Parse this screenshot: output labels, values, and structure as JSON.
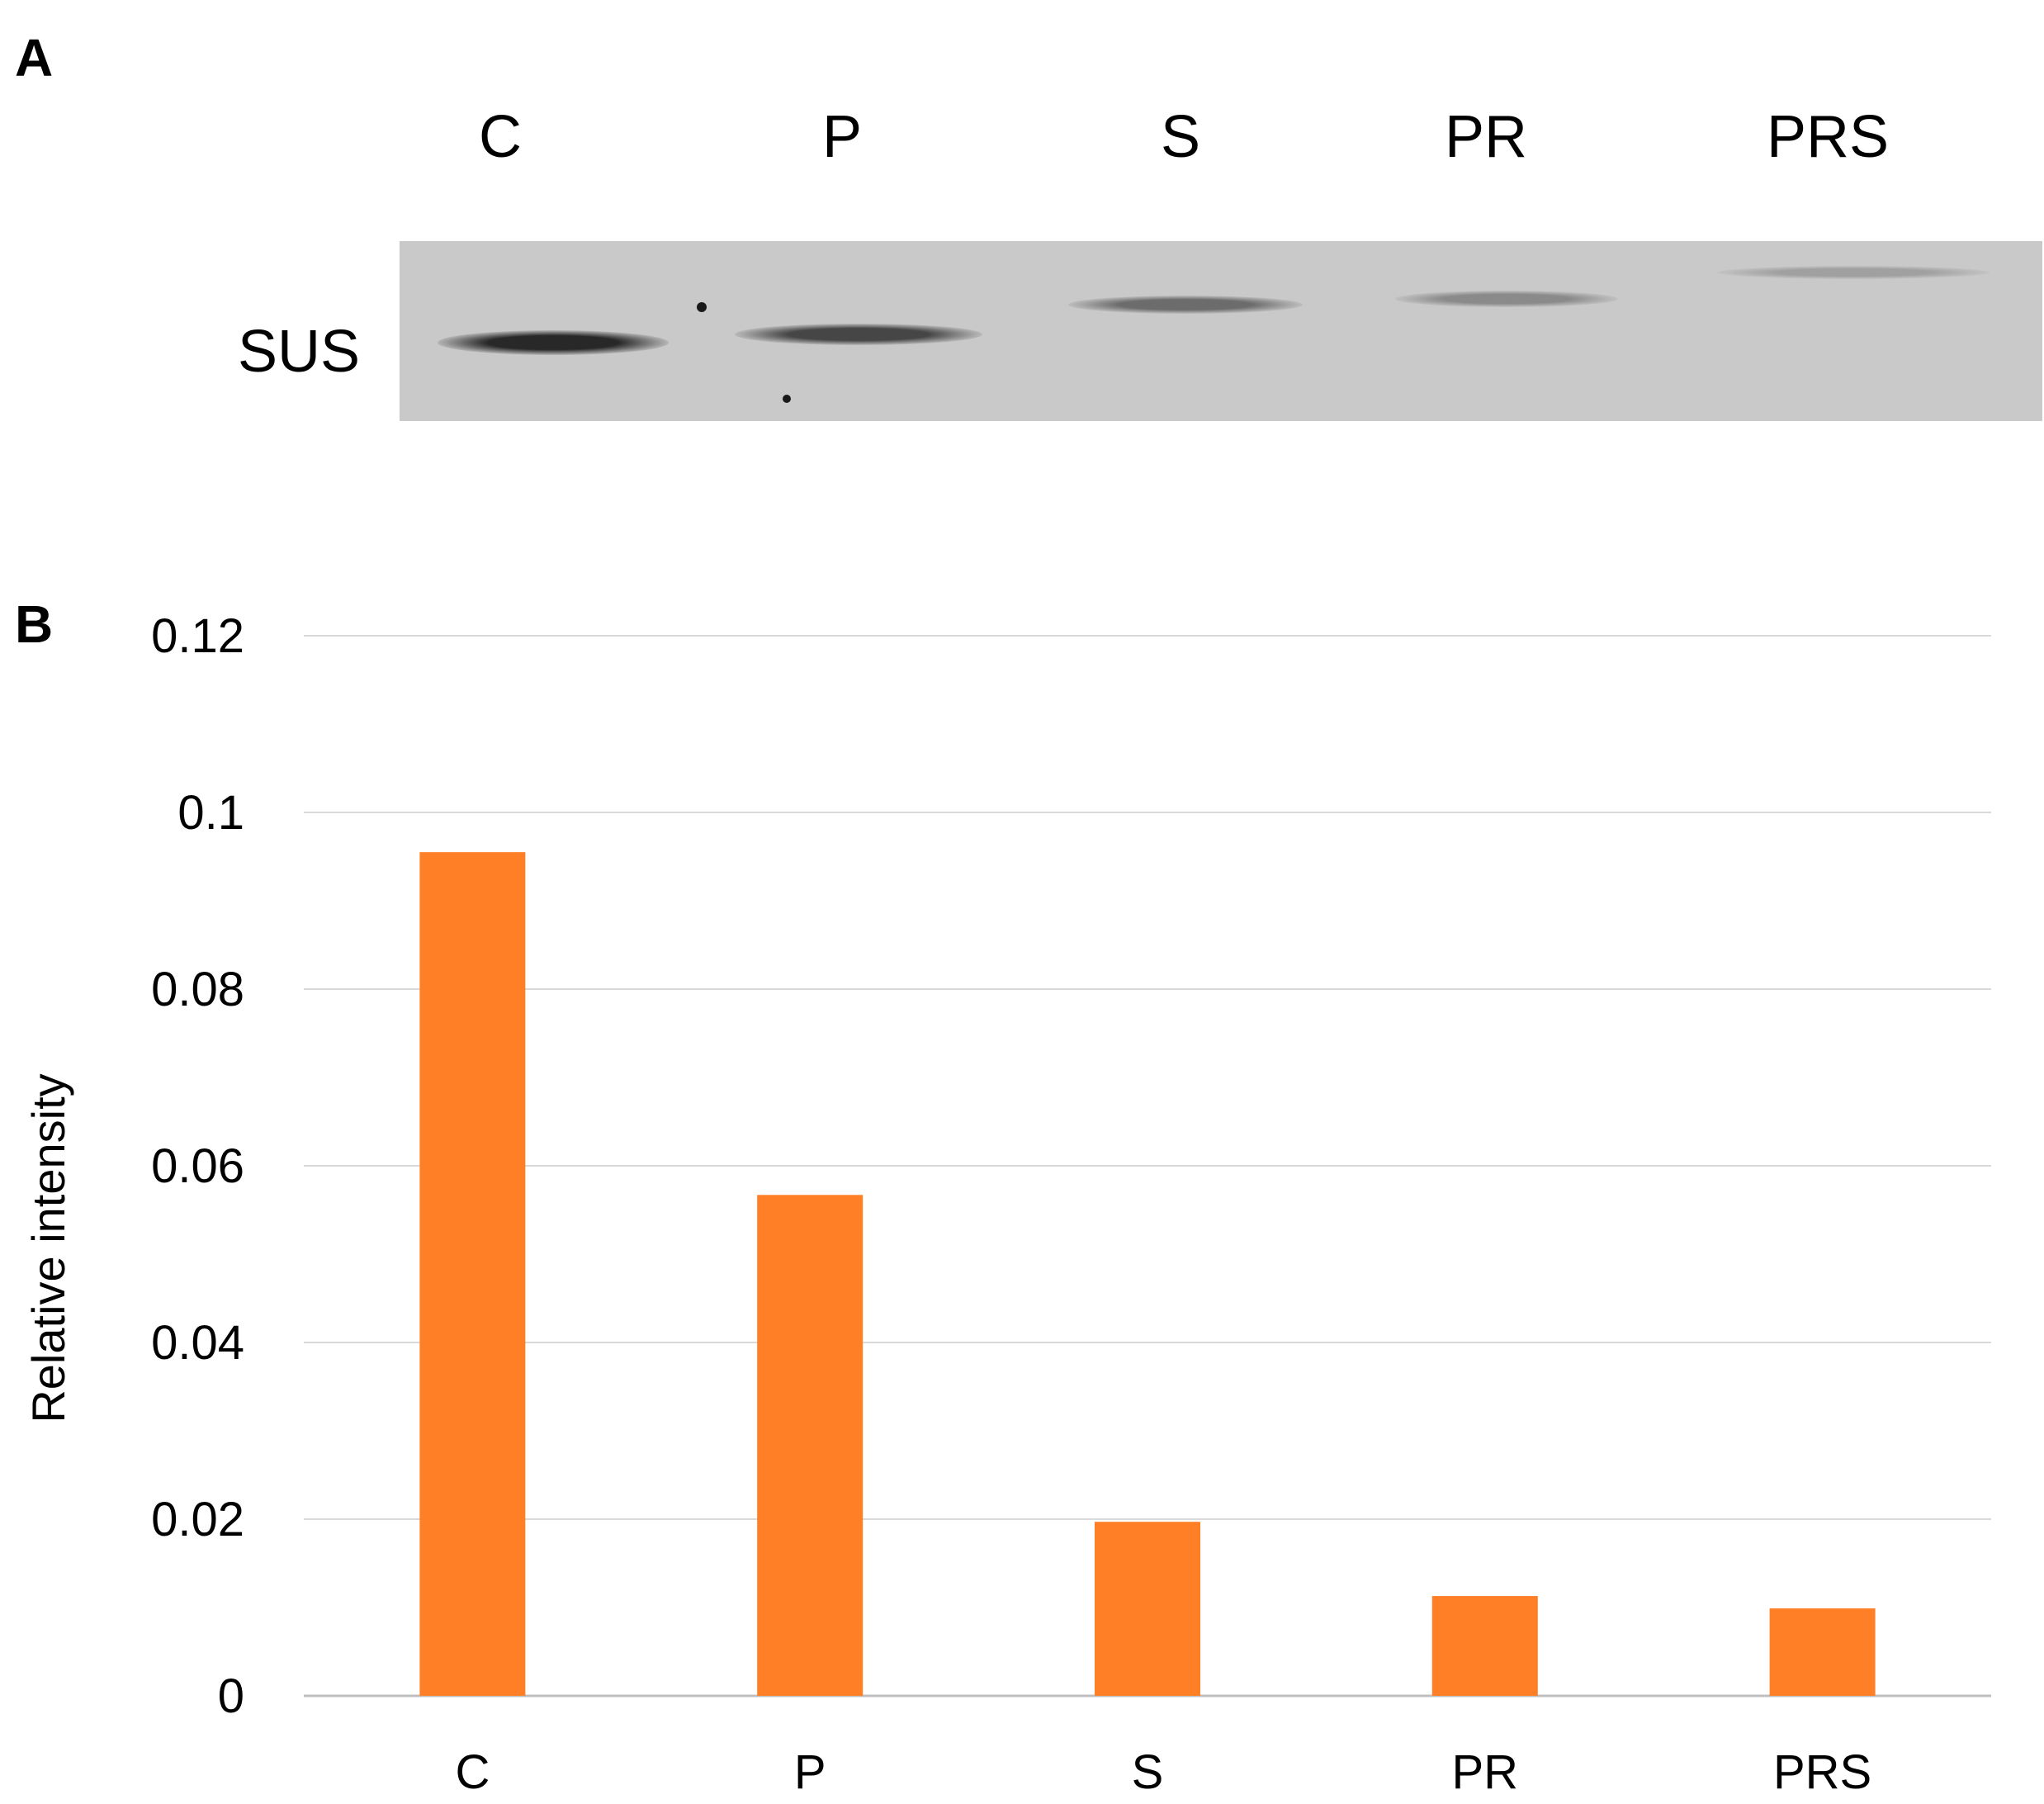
{
  "panel_a": {
    "letter": "A",
    "lanes": [
      "C",
      "P",
      "S",
      "PR",
      "PRS"
    ],
    "row_label": "SUS",
    "band_intensity": [
      1.0,
      0.8,
      0.55,
      0.35,
      0.2
    ]
  },
  "panel_b": {
    "letter": "B"
  },
  "chart_data": {
    "type": "bar",
    "categories": [
      "C",
      "P",
      "S",
      "PR",
      "PRS"
    ],
    "values": [
      0.0955,
      0.0567,
      0.0197,
      0.0113,
      0.0099
    ],
    "ylabel": "Relative intensity",
    "xlabel": "",
    "ylim": [
      0,
      0.12
    ],
    "yticks": [
      "0",
      "0.02",
      "0.04",
      "0.06",
      "0.08",
      "0.1",
      "0.12"
    ],
    "grid": true,
    "bar_color": "#FF7F27"
  }
}
